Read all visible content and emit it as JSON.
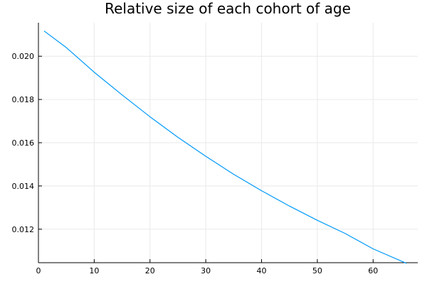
{
  "chart_data": {
    "type": "line",
    "title": "Relative size of each cohort of age",
    "xlabel": "",
    "ylabel": "",
    "xlim": [
      0,
      68
    ],
    "ylim": [
      0.01045,
      0.02155
    ],
    "x_ticks": [
      {
        "value": 0,
        "label": "0"
      },
      {
        "value": 10,
        "label": "10"
      },
      {
        "value": 20,
        "label": "20"
      },
      {
        "value": 30,
        "label": "30"
      },
      {
        "value": 40,
        "label": "40"
      },
      {
        "value": 50,
        "label": "50"
      },
      {
        "value": 60,
        "label": "60"
      }
    ],
    "y_ticks": [
      {
        "value": 0.012,
        "label": "0.012"
      },
      {
        "value": 0.014,
        "label": "0.014"
      },
      {
        "value": 0.016,
        "label": "0.016"
      },
      {
        "value": 0.018,
        "label": "0.018"
      },
      {
        "value": 0.02,
        "label": "0.020"
      }
    ],
    "grid": true,
    "legend": "none",
    "series": [
      {
        "color": "#009af9",
        "x": [
          1,
          5,
          10,
          15,
          20,
          25,
          30,
          35,
          40,
          45,
          50,
          55,
          60,
          66
        ],
        "y": [
          0.02117,
          0.0204,
          0.01926,
          0.01821,
          0.0172,
          0.01625,
          0.01537,
          0.01454,
          0.01378,
          0.01307,
          0.01241,
          0.0118,
          0.01109,
          0.01042
        ]
      }
    ]
  }
}
